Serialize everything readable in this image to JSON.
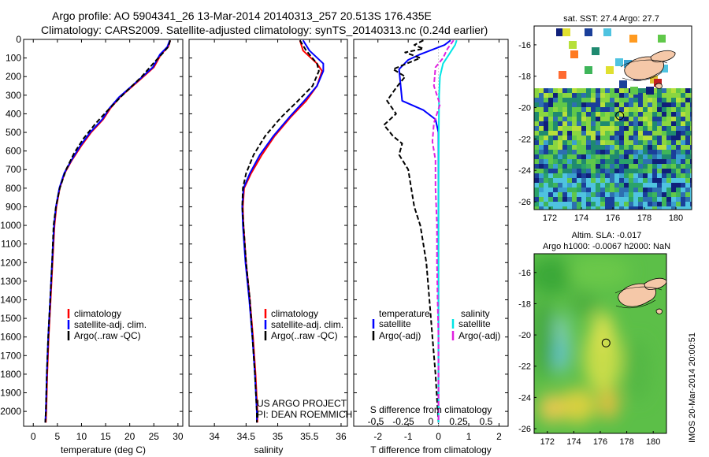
{
  "header": {
    "line1": "Argo profile: AO 5904341_26 13-Mar-2014 20140313_257 20.513S 176.435E",
    "line2": "Climatology: CARS2009. Satellite-adjusted climatology: synTS_20140313.nc (0.24d earlier)"
  },
  "colors": {
    "climatology": "#ff0000",
    "satellite": "#0000ff",
    "argo": "#000000",
    "salinity_satellite": "#00e5e5",
    "salinity_argo": "#e020e0"
  },
  "chart_data": [
    {
      "name": "temperature-profile",
      "type": "line",
      "xlabel": "temperature (deg C)",
      "ylabel": "",
      "xlim": [
        -2,
        31
      ],
      "ylim": [
        2080,
        0
      ],
      "xticks": [
        0,
        5,
        10,
        15,
        20,
        25,
        30
      ],
      "yticks": [
        0,
        100,
        200,
        300,
        400,
        500,
        600,
        700,
        800,
        900,
        1000,
        1100,
        1200,
        1300,
        1400,
        1500,
        1600,
        1700,
        1800,
        1900,
        2000
      ],
      "legend": [
        "climatology",
        "satellite-adj. clim.",
        "Argo(..raw -QC)"
      ],
      "series": [
        {
          "name": "climatology",
          "color": "#ff0000",
          "dash": "",
          "points": [
            [
              28.4,
              5
            ],
            [
              28,
              40
            ],
            [
              26.5,
              80
            ],
            [
              25,
              150
            ],
            [
              22,
              220
            ],
            [
              18,
              310
            ],
            [
              16,
              370
            ],
            [
              14.5,
              430
            ],
            [
              12,
              500
            ],
            [
              10,
              570
            ],
            [
              8,
              650
            ],
            [
              6.5,
              720
            ],
            [
              5.5,
              800
            ],
            [
              4.8,
              900
            ],
            [
              4.4,
              1000
            ],
            [
              4.0,
              1200
            ],
            [
              3.6,
              1400
            ],
            [
              3.2,
              1600
            ],
            [
              2.9,
              1800
            ],
            [
              2.7,
              2000
            ],
            [
              2.6,
              2060
            ]
          ]
        },
        {
          "name": "satellite-adj. clim.",
          "color": "#0000ff",
          "dash": "",
          "points": [
            [
              28.3,
              5
            ],
            [
              27.8,
              40
            ],
            [
              26.3,
              80
            ],
            [
              24.8,
              150
            ],
            [
              21.8,
              220
            ],
            [
              17.8,
              310
            ],
            [
              15.8,
              370
            ],
            [
              14.3,
              430
            ],
            [
              11.8,
              500
            ],
            [
              9.8,
              570
            ],
            [
              7.9,
              650
            ],
            [
              6.4,
              720
            ],
            [
              5.4,
              800
            ],
            [
              4.7,
              900
            ],
            [
              4.3,
              1000
            ],
            [
              3.9,
              1200
            ],
            [
              3.5,
              1400
            ],
            [
              3.1,
              1600
            ],
            [
              2.8,
              1800
            ],
            [
              2.6,
              2000
            ],
            [
              2.5,
              2060
            ]
          ]
        },
        {
          "name": "Argo(..raw -QC)",
          "color": "#000000",
          "dash": "6,3",
          "points": [
            [
              28.4,
              5
            ],
            [
              28,
              40
            ],
            [
              27,
              70
            ],
            [
              25.2,
              120
            ],
            [
              22.5,
              200
            ],
            [
              18.5,
              300
            ],
            [
              15.5,
              380
            ],
            [
              13,
              450
            ],
            [
              10.5,
              530
            ],
            [
              8.5,
              610
            ],
            [
              6.8,
              700
            ],
            [
              5.5,
              800
            ],
            [
              4.7,
              900
            ],
            [
              4.2,
              1000
            ],
            [
              3.9,
              1200
            ],
            [
              3.5,
              1400
            ],
            [
              3.1,
              1600
            ],
            [
              2.8,
              1800
            ],
            [
              2.6,
              2000
            ],
            [
              2.5,
              2060
            ]
          ]
        }
      ]
    },
    {
      "name": "salinity-profile",
      "type": "line",
      "xlabel": "salinity",
      "ylabel": "",
      "xlim": [
        33.6,
        36.1
      ],
      "ylim": [
        2080,
        0
      ],
      "xticks": [
        34,
        34.5,
        35,
        35.5,
        36
      ],
      "xtick_labels": [
        "34",
        "34.5",
        "35",
        "35.5",
        "36"
      ],
      "legend": [
        "climatology",
        "satellite-adj. clim.",
        "Argo(..raw -QC)"
      ],
      "series": [
        {
          "name": "climatology",
          "color": "#ff0000",
          "dash": "",
          "points": [
            [
              35.35,
              5
            ],
            [
              35.4,
              60
            ],
            [
              35.62,
              130
            ],
            [
              35.7,
              170
            ],
            [
              35.62,
              250
            ],
            [
              35.45,
              330
            ],
            [
              35.2,
              420
            ],
            [
              34.95,
              520
            ],
            [
              34.75,
              620
            ],
            [
              34.58,
              720
            ],
            [
              34.47,
              800
            ],
            [
              34.45,
              900
            ],
            [
              34.46,
              1000
            ],
            [
              34.5,
              1200
            ],
            [
              34.56,
              1400
            ],
            [
              34.61,
              1600
            ],
            [
              34.65,
              1800
            ],
            [
              34.68,
              2000
            ],
            [
              34.68,
              2060
            ]
          ]
        },
        {
          "name": "satellite-adj. clim.",
          "color": "#0000ff",
          "dash": "",
          "points": [
            [
              35.4,
              5
            ],
            [
              35.5,
              60
            ],
            [
              35.72,
              130
            ],
            [
              35.72,
              170
            ],
            [
              35.62,
              250
            ],
            [
              35.42,
              330
            ],
            [
              35.18,
              420
            ],
            [
              34.93,
              520
            ],
            [
              34.72,
              620
            ],
            [
              34.56,
              720
            ],
            [
              34.46,
              800
            ],
            [
              34.44,
              900
            ],
            [
              34.45,
              1000
            ],
            [
              34.49,
              1200
            ],
            [
              34.55,
              1400
            ],
            [
              34.6,
              1600
            ],
            [
              34.64,
              1800
            ],
            [
              34.67,
              2000
            ],
            [
              34.67,
              2060
            ]
          ]
        },
        {
          "name": "Argo(..raw -QC)",
          "color": "#000000",
          "dash": "6,3",
          "points": [
            [
              35.35,
              5
            ],
            [
              35.45,
              60
            ],
            [
              35.62,
              130
            ],
            [
              35.65,
              170
            ],
            [
              35.55,
              250
            ],
            [
              35.32,
              330
            ],
            [
              35.05,
              420
            ],
            [
              34.8,
              520
            ],
            [
              34.62,
              620
            ],
            [
              34.5,
              720
            ],
            [
              34.45,
              800
            ],
            [
              34.44,
              900
            ],
            [
              34.46,
              1000
            ],
            [
              34.5,
              1200
            ],
            [
              34.56,
              1400
            ],
            [
              34.6,
              1600
            ],
            [
              34.64,
              1800
            ],
            [
              34.67,
              2000
            ],
            [
              34.67,
              2060
            ]
          ]
        }
      ]
    },
    {
      "name": "difference-profile",
      "type": "line",
      "xlabel": "T difference from climatology",
      "x2label": "S difference from climatology",
      "xlim": [
        -2.8,
        2.3
      ],
      "ylim": [
        2080,
        0
      ],
      "xticks": [
        -2,
        -1,
        0,
        1,
        2
      ],
      "x2ticks": [
        -0.5,
        -0.25,
        0,
        0.25,
        0.5
      ],
      "x2tick_labels": [
        "-0.5",
        "-0.25",
        "0",
        "0.25",
        "0.5"
      ],
      "legend": {
        "temperature_title": "temperature",
        "salinity_title": "salinity",
        "temperature": [
          "satellite",
          "Argo(-adj)"
        ],
        "salinity": [
          "satellite",
          "Argo(-adj)"
        ]
      },
      "series": [
        {
          "name": "T satellite",
          "color": "#0000ff",
          "dash": "",
          "points": [
            [
              0.4,
              5
            ],
            [
              0.2,
              30
            ],
            [
              -0.6,
              80
            ],
            [
              -1.0,
              110
            ],
            [
              -1.3,
              160
            ],
            [
              -1.25,
              250
            ],
            [
              -1.2,
              330
            ],
            [
              -0.5,
              380
            ],
            [
              -0.1,
              430
            ],
            [
              0,
              500
            ],
            [
              0,
              800
            ],
            [
              0,
              1200
            ],
            [
              0,
              1600
            ],
            [
              0,
              2060
            ]
          ]
        },
        {
          "name": "T Argo(-adj)",
          "color": "#000000",
          "dash": "6,3",
          "points": [
            [
              -0.5,
              5
            ],
            [
              -0.8,
              30
            ],
            [
              -0.5,
              50
            ],
            [
              -1.1,
              70
            ],
            [
              -0.6,
              100
            ],
            [
              -1.5,
              160
            ],
            [
              -1.1,
              200
            ],
            [
              -1.4,
              260
            ],
            [
              -1.7,
              330
            ],
            [
              -1.4,
              400
            ],
            [
              -1.8,
              460
            ],
            [
              -1.5,
              520
            ],
            [
              -1.2,
              560
            ],
            [
              -1.3,
              620
            ],
            [
              -1.0,
              700
            ],
            [
              -0.9,
              800
            ],
            [
              -0.8,
              900
            ],
            [
              -0.6,
              1000
            ],
            [
              -0.5,
              1100
            ],
            [
              -0.4,
              1200
            ],
            [
              -0.3,
              1400
            ],
            [
              -0.2,
              1600
            ],
            [
              -0.1,
              1800
            ],
            [
              0,
              2060
            ]
          ]
        },
        {
          "name": "S satellite",
          "color": "#00e5e5",
          "dash": "",
          "points": [
            [
              0.6,
              5
            ],
            [
              0.55,
              30
            ],
            [
              0.35,
              80
            ],
            [
              0.15,
              130
            ],
            [
              0.05,
              200
            ],
            [
              0.02,
              300
            ],
            [
              0.01,
              500
            ],
            [
              0,
              800
            ],
            [
              0,
              1200
            ],
            [
              0,
              1600
            ],
            [
              0,
              2060
            ]
          ]
        },
        {
          "name": "S Argo(-adj)",
          "color": "#e020e0",
          "dash": "6,3",
          "points": [
            [
              0.5,
              5
            ],
            [
              0.3,
              50
            ],
            [
              0.15,
              100
            ],
            [
              -0.1,
              150
            ],
            [
              -0.15,
              250
            ],
            [
              0.05,
              350
            ],
            [
              -0.15,
              450
            ],
            [
              -0.2,
              550
            ],
            [
              -0.1,
              650
            ],
            [
              -0.1,
              800
            ],
            [
              -0.05,
              1000
            ],
            [
              -0.05,
              1200
            ],
            [
              -0.03,
              1400
            ],
            [
              0,
              1600
            ],
            [
              0,
              2060
            ]
          ]
        }
      ]
    },
    {
      "name": "sst-map",
      "type": "heatmap",
      "title": "sat. SST: 27.4  Argo: 27.7",
      "xlim": [
        171,
        181
      ],
      "ylim": [
        -26.5,
        -14.8
      ],
      "xticks": [
        172,
        174,
        176,
        178,
        180
      ],
      "yticks": [
        -16,
        -18,
        -20,
        -22,
        -24,
        -26
      ],
      "marker": [
        176.435,
        -20.513
      ]
    },
    {
      "name": "sla-map",
      "type": "heatmap",
      "title": "Altim. SLA: -0.017",
      "subtitle": "Argo h1000: -0.0067 h2000: NaN",
      "xlim": [
        171,
        181
      ],
      "ylim": [
        -26.3,
        -14.8
      ],
      "xticks": [
        172,
        174,
        176,
        178,
        180
      ],
      "yticks": [
        -16,
        -18,
        -20,
        -22,
        -24,
        -26
      ],
      "marker": [
        176.435,
        -20.513
      ]
    }
  ],
  "footer": {
    "project": "US ARGO PROJECT",
    "pi": "PI: DEAN ROEMMICH",
    "stamp": "IMOS 20-Mar-2014 20:00:51"
  }
}
